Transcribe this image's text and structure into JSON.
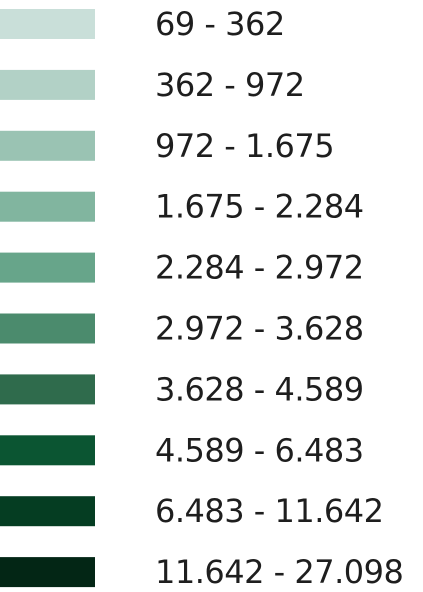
{
  "legend": {
    "items": [
      {
        "label": "69 - 362",
        "color": "#c9dfd9"
      },
      {
        "label": "362 - 972",
        "color": "#b2d1c6"
      },
      {
        "label": "972 - 1.675",
        "color": "#9ac3b3"
      },
      {
        "label": "1.675 - 2.284",
        "color": "#81b59f"
      },
      {
        "label": "2.284 - 2.972",
        "color": "#67a58a"
      },
      {
        "label": "2.972 - 3.628",
        "color": "#4b8b6d"
      },
      {
        "label": "3.628 - 4.589",
        "color": "#2f6b4c"
      },
      {
        "label": "4.589 - 6.483",
        "color": "#0b5532"
      },
      {
        "label": "6.483 - 11.642",
        "color": "#053d22"
      },
      {
        "label": "11.642 - 27.098",
        "color": "#032615"
      }
    ]
  }
}
